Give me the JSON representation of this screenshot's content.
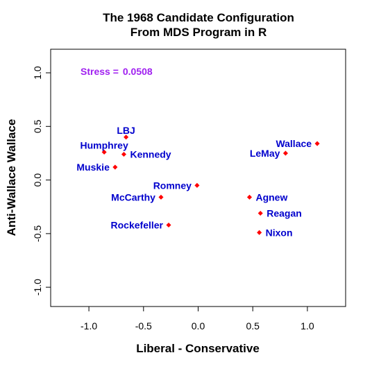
{
  "chart_data": {
    "type": "scatter",
    "title_line1": "The 1968 Candidate Configuration",
    "title_line2": "From MDS Program in R",
    "xlabel": "Liberal - Conservative",
    "ylabel": "Anti-Wallace   Wallace",
    "xlim": [
      -1.35,
      1.35
    ],
    "ylim": [
      -1.18,
      1.22
    ],
    "xticks": [
      -1.0,
      -0.5,
      0.0,
      0.5,
      1.0
    ],
    "xtick_labels": [
      "-1.0",
      "-0.5",
      "0.0",
      "0.5",
      "1.0"
    ],
    "yticks": [
      -1.0,
      -0.5,
      0.0,
      0.5,
      1.0
    ],
    "ytick_labels": [
      "-1.0",
      "-0.5",
      "0.0",
      "0.5",
      "1.0"
    ],
    "grid": false,
    "stress_label": "Stress =",
    "stress_value": "0.0508",
    "stress_color": "#a020f0",
    "point_color": "#ff0000",
    "label_color": "#0000cd",
    "points": [
      {
        "name": "LBJ",
        "x": -0.66,
        "y": 0.4,
        "pos": "above"
      },
      {
        "name": "Humphrey",
        "x": -0.86,
        "y": 0.26,
        "pos": "above"
      },
      {
        "name": "Kennedy",
        "x": -0.68,
        "y": 0.24,
        "pos": "right"
      },
      {
        "name": "Muskie",
        "x": -0.76,
        "y": 0.12,
        "pos": "left"
      },
      {
        "name": "Romney",
        "x": -0.01,
        "y": -0.05,
        "pos": "left"
      },
      {
        "name": "McCarthy",
        "x": -0.34,
        "y": -0.16,
        "pos": "left"
      },
      {
        "name": "Rockefeller",
        "x": -0.27,
        "y": -0.42,
        "pos": "left"
      },
      {
        "name": "Wallace",
        "x": 1.09,
        "y": 0.34,
        "pos": "left"
      },
      {
        "name": "LeMay",
        "x": 0.8,
        "y": 0.25,
        "pos": "left"
      },
      {
        "name": "Agnew",
        "x": 0.47,
        "y": -0.16,
        "pos": "right"
      },
      {
        "name": "Reagan",
        "x": 0.57,
        "y": -0.31,
        "pos": "right"
      },
      {
        "name": "Nixon",
        "x": 0.56,
        "y": -0.49,
        "pos": "right"
      }
    ]
  }
}
